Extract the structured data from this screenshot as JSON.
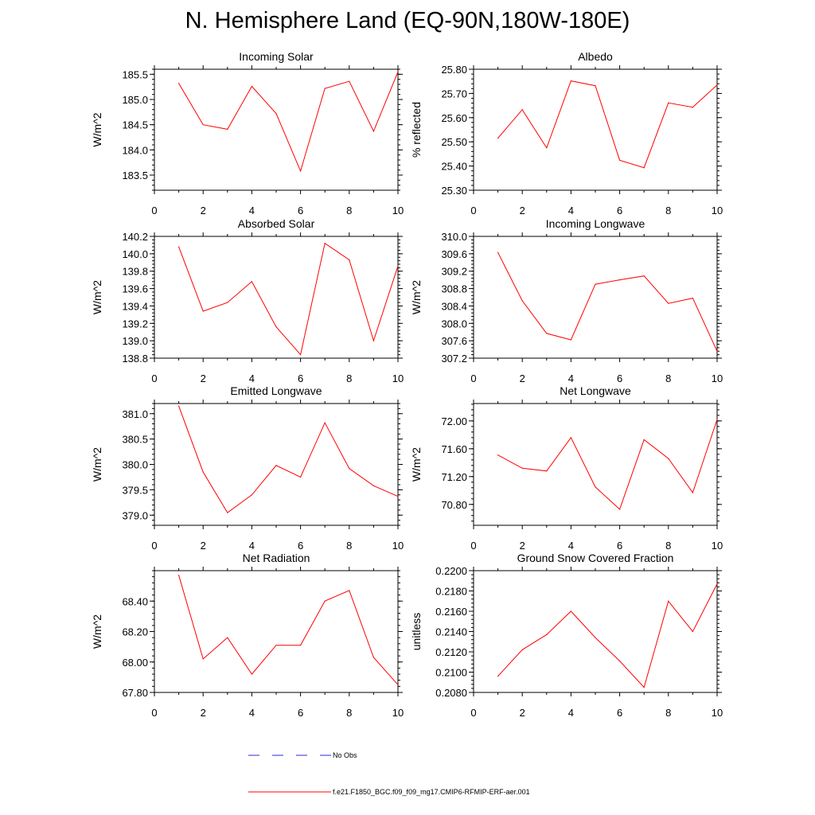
{
  "main_title": "N. Hemisphere Land (EQ-90N,180W-180E)",
  "legend": {
    "obs_label": "No Obs",
    "obs_color": "#2a2ad6",
    "model_label": "f.e21.F1850_BGC.f09_f09_mg17.CMIP6-RFMIP-ERF-aer.001",
    "model_color": "#ff0000"
  },
  "chart_data": [
    {
      "type": "line",
      "title": "Incoming Solar",
      "ylabel": "W/m^2",
      "xlim": [
        0,
        10
      ],
      "ylim": [
        183.2,
        185.6
      ],
      "xticks": [
        "0",
        "2",
        "4",
        "6",
        "8",
        "10"
      ],
      "yticks": [
        "183.5",
        "184.0",
        "184.5",
        "185.0",
        "185.5"
      ],
      "x": [
        1,
        2,
        3,
        4,
        5,
        6,
        7,
        8,
        9,
        10
      ],
      "values": [
        185.32,
        184.5,
        184.41,
        185.26,
        184.72,
        183.58,
        185.22,
        185.36,
        184.37,
        185.55
      ]
    },
    {
      "type": "line",
      "title": "Albedo",
      "ylabel": "% reflected",
      "xlim": [
        0,
        10
      ],
      "ylim": [
        25.3,
        25.8
      ],
      "xticks": [
        "0",
        "2",
        "4",
        "6",
        "8",
        "10"
      ],
      "yticks": [
        "25.30",
        "25.40",
        "25.50",
        "25.60",
        "25.70",
        "25.80"
      ],
      "x": [
        1,
        2,
        3,
        4,
        5,
        6,
        7,
        8,
        9,
        10
      ],
      "values": [
        25.515,
        25.633,
        25.475,
        25.752,
        25.732,
        25.424,
        25.393,
        25.661,
        25.643,
        25.735
      ]
    },
    {
      "type": "line",
      "title": "Absorbed Solar",
      "ylabel": "W/m^2",
      "xlim": [
        0,
        10
      ],
      "ylim": [
        138.8,
        140.2
      ],
      "xticks": [
        "0",
        "2",
        "4",
        "6",
        "8",
        "10"
      ],
      "yticks": [
        "138.8",
        "139.0",
        "139.2",
        "139.4",
        "139.6",
        "139.8",
        "140.0",
        "140.2"
      ],
      "x": [
        1,
        2,
        3,
        4,
        5,
        6,
        7,
        8,
        9,
        10
      ],
      "values": [
        140.08,
        139.34,
        139.44,
        139.68,
        139.16,
        138.84,
        140.12,
        139.93,
        139.0,
        139.86
      ]
    },
    {
      "type": "line",
      "title": "Incoming Longwave",
      "ylabel": "W/m^2",
      "xlim": [
        0,
        10
      ],
      "ylim": [
        307.2,
        310.0
      ],
      "xticks": [
        "0",
        "2",
        "4",
        "6",
        "8",
        "10"
      ],
      "yticks": [
        "307.2",
        "307.6",
        "308.0",
        "308.4",
        "308.8",
        "309.2",
        "309.6",
        "310.0"
      ],
      "x": [
        1,
        2,
        3,
        4,
        5,
        6,
        7,
        8,
        9,
        10
      ],
      "values": [
        309.63,
        308.52,
        307.77,
        307.62,
        308.9,
        309.0,
        309.09,
        308.46,
        308.58,
        307.36
      ]
    },
    {
      "type": "line",
      "title": "Emitted Longwave",
      "ylabel": "W/m^2",
      "xlim": [
        0,
        10
      ],
      "ylim": [
        378.8,
        381.2
      ],
      "xticks": [
        "0",
        "2",
        "4",
        "6",
        "8",
        "10"
      ],
      "yticks": [
        "379.0",
        "379.5",
        "380.0",
        "380.5",
        "381.0"
      ],
      "x": [
        1,
        2,
        3,
        4,
        5,
        6,
        7,
        8,
        9,
        10
      ],
      "values": [
        381.15,
        379.85,
        379.05,
        379.4,
        379.98,
        379.75,
        380.82,
        379.92,
        379.58,
        379.37
      ]
    },
    {
      "type": "line",
      "title": "Net Longwave",
      "ylabel": "W/m^2",
      "xlim": [
        0,
        10
      ],
      "ylim": [
        70.5,
        72.25
      ],
      "xticks": [
        "0",
        "2",
        "4",
        "6",
        "8",
        "10"
      ],
      "yticks": [
        "70.80",
        "71.20",
        "71.60",
        "72.00"
      ],
      "x": [
        1,
        2,
        3,
        4,
        5,
        6,
        7,
        8,
        9,
        10
      ],
      "values": [
        71.51,
        71.32,
        71.28,
        71.76,
        71.05,
        70.73,
        71.73,
        71.46,
        70.97,
        72.02
      ]
    },
    {
      "type": "line",
      "title": "Net Radiation",
      "ylabel": "W/m^2",
      "xlim": [
        0,
        10
      ],
      "ylim": [
        67.8,
        68.6
      ],
      "xticks": [
        "0",
        "2",
        "4",
        "6",
        "8",
        "10"
      ],
      "yticks": [
        "67.80",
        "68.00",
        "68.20",
        "68.40"
      ],
      "x": [
        1,
        2,
        3,
        4,
        5,
        6,
        7,
        8,
        9,
        10
      ],
      "values": [
        68.57,
        68.02,
        68.16,
        67.92,
        68.11,
        68.11,
        68.4,
        68.47,
        68.03,
        67.85
      ]
    },
    {
      "type": "line",
      "title": "Ground Snow Covered Fraction",
      "ylabel": "unitless",
      "xlim": [
        0,
        10
      ],
      "ylim": [
        0.208,
        0.22
      ],
      "xticks": [
        "0",
        "2",
        "4",
        "6",
        "8",
        "10"
      ],
      "yticks": [
        "0.2080",
        "0.2100",
        "0.2120",
        "0.2140",
        "0.2160",
        "0.2180",
        "0.2200"
      ],
      "x": [
        1,
        2,
        3,
        4,
        5,
        6,
        7,
        8,
        9,
        10
      ],
      "values": [
        0.2096,
        0.2122,
        0.2137,
        0.216,
        0.2134,
        0.2111,
        0.2085,
        0.217,
        0.214,
        0.2187
      ]
    }
  ]
}
